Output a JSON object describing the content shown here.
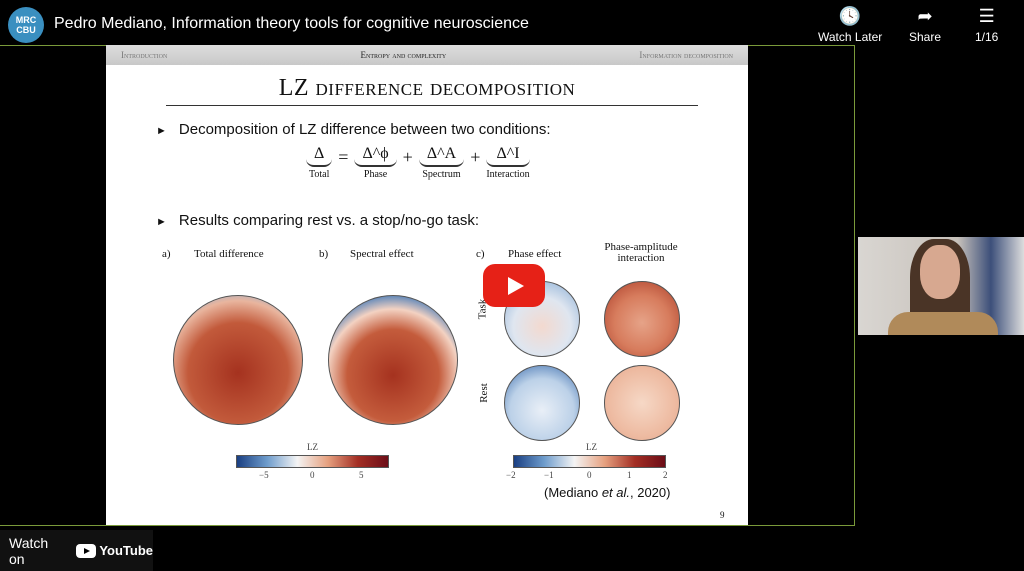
{
  "channel": {
    "logo_text": "MRC CBU",
    "title": "Pedro Mediano, Information theory tools for cognitive neuroscience"
  },
  "actions": {
    "watch_later": "Watch Later",
    "share": "Share",
    "playlist": "1/16"
  },
  "slide": {
    "nav": [
      "Introduction",
      "Entropy and complexity",
      "Information decomposition"
    ],
    "nav_active": 1,
    "title": "LZ difference decomposition",
    "bullet1": "Decomposition of LZ difference between two conditions:",
    "equation": {
      "total": "Δ",
      "eq": "=",
      "phase": "Δ^ϕ",
      "plus": "+",
      "spectrum": "Δ^A",
      "interaction": "Δ^I",
      "labels": {
        "total": "Total",
        "phase": "Phase",
        "spectrum": "Spectrum",
        "interaction": "Interaction"
      }
    },
    "bullet2": "Results comparing rest vs. a stop/no-go task:",
    "panels": {
      "a": "a)",
      "a_title": "Total difference",
      "b": "b)",
      "b_title": "Spectral effect",
      "c": "c)",
      "c_phase": "Phase effect",
      "c_inter": "Phase-amplitude interaction",
      "row_task": "Task",
      "row_rest": "Rest"
    },
    "colorbar1": {
      "label": "LZ",
      "ticks": [
        "−5",
        "0",
        "5"
      ]
    },
    "colorbar2": {
      "label": "LZ",
      "ticks": [
        "−2",
        "−1",
        "0",
        "1",
        "2"
      ]
    },
    "citation_pre": "(Mediano ",
    "citation_em": "et al.",
    "citation_post": ", 2020)",
    "page": "9"
  },
  "footer": {
    "watch_on": "Watch on",
    "youtube": "YouTube"
  },
  "colors": {
    "play": "#e62117",
    "frame": "#7a9a3a"
  }
}
